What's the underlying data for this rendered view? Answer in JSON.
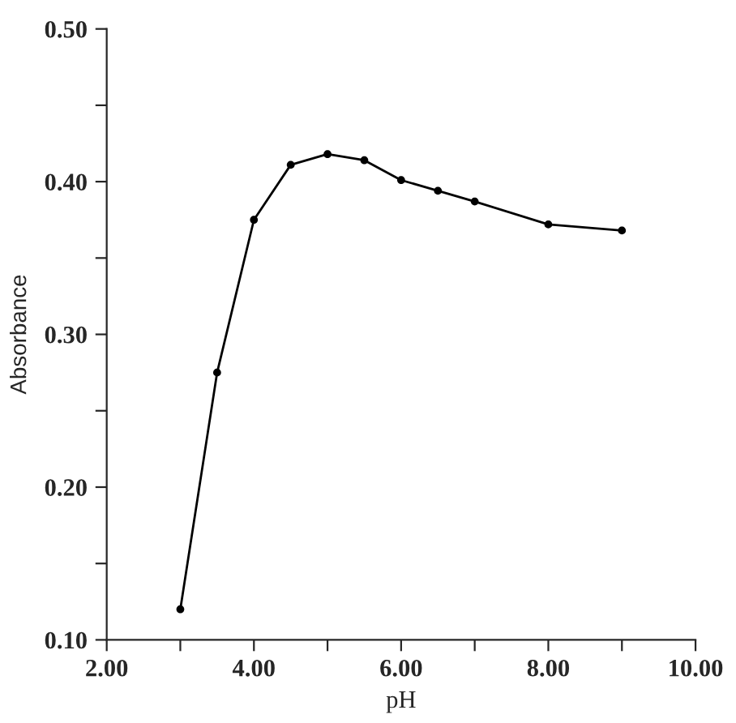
{
  "chart_data": {
    "type": "line",
    "xlabel": "pH",
    "ylabel": "Absorbance",
    "x": [
      3,
      3.5,
      4,
      4.5,
      5,
      5.5,
      6,
      6.5,
      7,
      8,
      9
    ],
    "series": [
      {
        "color": "#000000",
        "values": [
          0.12,
          0.275,
          0.375,
          0.411,
          0.418,
          0.414,
          0.401,
          0.394,
          0.387,
          0.372,
          0.368
        ]
      }
    ],
    "xlim": [
      2,
      10
    ],
    "ylim": [
      0.1,
      0.5
    ],
    "xticks": [
      {
        "value": 2,
        "label": "2.00"
      },
      {
        "value": 3,
        "label": null
      },
      {
        "value": 4,
        "label": "4.00"
      },
      {
        "value": 5,
        "label": null
      },
      {
        "value": 6,
        "label": "6.00"
      },
      {
        "value": 7,
        "label": null
      },
      {
        "value": 8,
        "label": "8.00"
      },
      {
        "value": 9,
        "label": null
      },
      {
        "value": 10,
        "label": "10.00"
      }
    ],
    "yticks": [
      {
        "value": 0.1,
        "label": "0.10"
      },
      {
        "value": 0.15,
        "label": null
      },
      {
        "value": 0.2,
        "label": "0.20"
      },
      {
        "value": 0.25,
        "label": null
      },
      {
        "value": 0.3,
        "label": "0.30"
      },
      {
        "value": 0.35,
        "label": null
      },
      {
        "value": 0.4,
        "label": "0.40"
      },
      {
        "value": 0.45,
        "label": null
      },
      {
        "value": 0.5,
        "label": "0.50"
      }
    ],
    "marker": "circle",
    "line_style": "solid",
    "grid": false,
    "legend": false
  }
}
